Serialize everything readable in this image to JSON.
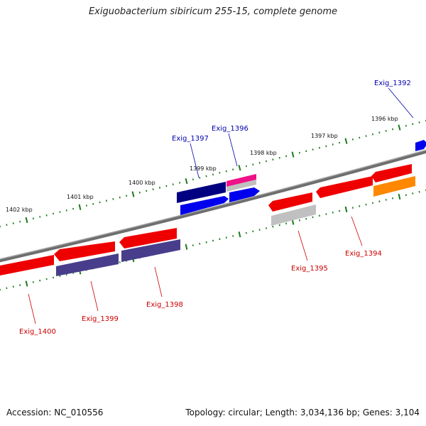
{
  "title": "Exiguobacterium sibiricum 255-15, complete genome",
  "footer": {
    "accession": "Accession: NC_010556",
    "summary": "Topology: circular; Length: 3,034,136 bp; Genes: 3,104"
  },
  "colors": {
    "backbone": "#808080",
    "tick": "#1a7a1a",
    "forward_label": "#0000aa",
    "reverse_label": "#cc0000"
  },
  "kbp_labels": [
    "1402 kbp",
    "1401 kbp",
    "1400 kbp",
    "1399 kbp",
    "1398 kbp",
    "1397 kbp",
    "1396 kbp"
  ],
  "genes": [
    {
      "id": "Exig_1392",
      "strand": "forward",
      "color": "#0000ee"
    },
    {
      "id": "Exig_1396",
      "strand": "forward",
      "color": "#ee1188"
    },
    {
      "id": "Exig_1397",
      "strand": "forward",
      "color": "#000080"
    },
    {
      "id": "Exig_1394",
      "strand": "reverse",
      "color": "#ee0000"
    },
    {
      "id": "Exig_1395",
      "strand": "reverse",
      "color": "#ee0000"
    },
    {
      "id": "Exig_1398",
      "strand": "reverse",
      "color": "#ee0000"
    },
    {
      "id": "Exig_1399",
      "strand": "reverse",
      "color": "#ee0000"
    },
    {
      "id": "Exig_1400",
      "strand": "reverse",
      "color": "#ee0000"
    }
  ],
  "features": [
    {
      "name": "feature-forward-top-magenta",
      "strand": "forward",
      "color": "#ee1188"
    },
    {
      "name": "feature-forward-top-grey",
      "strand": "forward",
      "color": "#c0c0c0"
    },
    {
      "name": "feature-forward-top-navy",
      "strand": "forward",
      "color": "#000080"
    },
    {
      "name": "feature-forward-blue-1",
      "strand": "forward",
      "color": "#0000ee"
    },
    {
      "name": "feature-forward-blue-2",
      "strand": "forward",
      "color": "#0000ee"
    },
    {
      "name": "feature-forward-blue-edge",
      "strand": "forward",
      "color": "#0000ee"
    },
    {
      "name": "feature-reverse-red-1",
      "strand": "reverse",
      "color": "#ee0000"
    },
    {
      "name": "feature-reverse-red-2",
      "strand": "reverse",
      "color": "#ee0000"
    },
    {
      "name": "feature-reverse-red-3",
      "strand": "reverse",
      "color": "#ee0000"
    },
    {
      "name": "feature-reverse-red-4",
      "strand": "reverse",
      "color": "#ee0000"
    },
    {
      "name": "feature-reverse-red-5",
      "strand": "reverse",
      "color": "#ee0000"
    },
    {
      "name": "feature-reverse-red-6",
      "strand": "reverse",
      "color": "#ee0000"
    },
    {
      "name": "feature-reverse-grey",
      "strand": "reverse",
      "color": "#c0c0c0"
    },
    {
      "name": "feature-reverse-orange",
      "strand": "reverse",
      "color": "#ff8800"
    },
    {
      "name": "feature-reverse-slate-1",
      "strand": "reverse",
      "color": "#483d8b"
    },
    {
      "name": "feature-reverse-slate-2",
      "strand": "reverse",
      "color": "#483d8b"
    }
  ]
}
